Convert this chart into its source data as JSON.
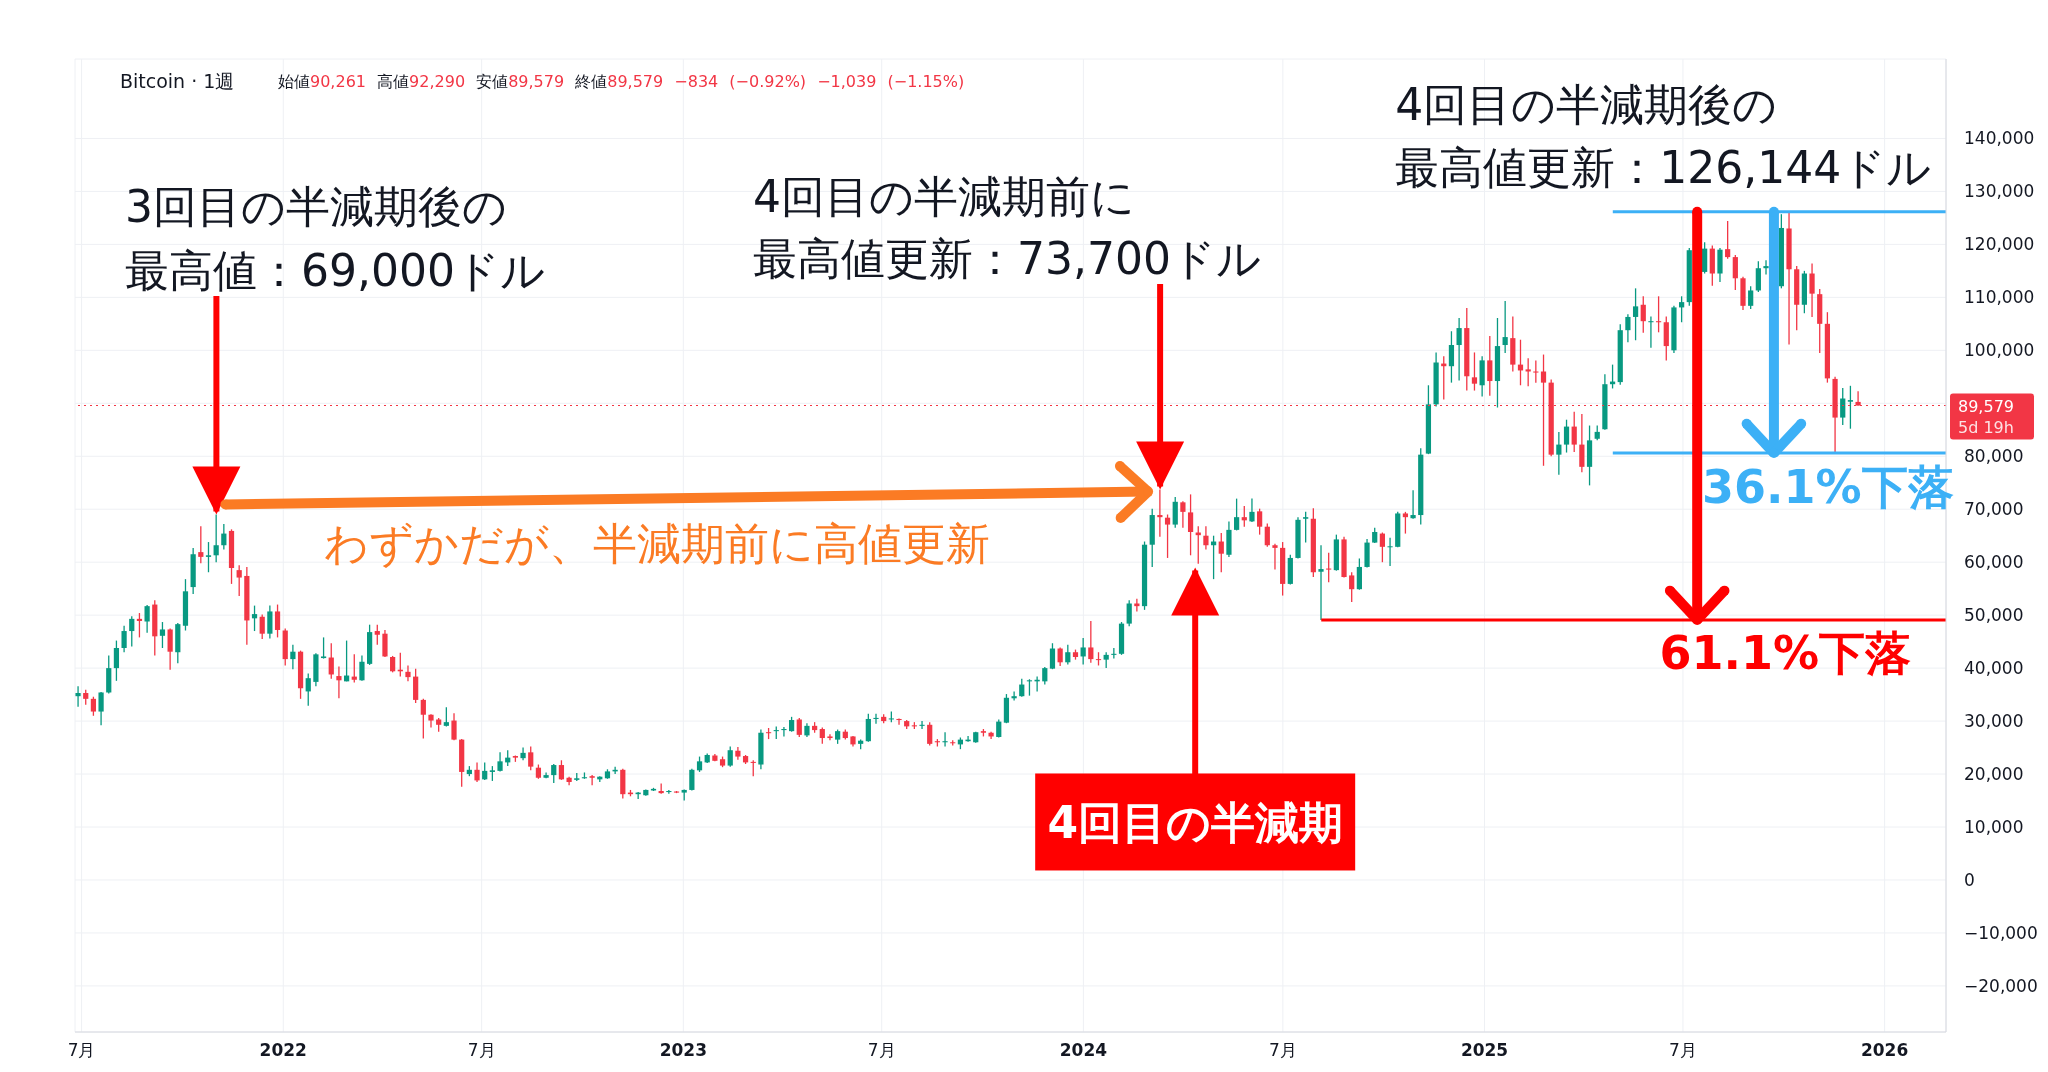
{
  "chart_data": {
    "type": "candlestick",
    "title": "Bitcoin · 1週",
    "subtitle": "始値90,261 高値92,290 安値89,579 終値89,579 −834 (−0.92%) −1,039 (−1.15%)",
    "x": [
      "2021-06-28",
      "2021-07-05",
      "2021-07-12",
      "2021-07-19",
      "2021-07-26",
      "2021-08-02",
      "2021-08-09",
      "2021-08-16",
      "2021-08-23",
      "2021-08-30",
      "2021-09-06",
      "2021-09-13",
      "2021-09-20",
      "2021-09-27",
      "2021-10-04",
      "2021-10-11",
      "2021-10-18",
      "2021-10-25",
      "2021-11-01",
      "2021-11-08",
      "2021-11-15",
      "2021-11-22",
      "2021-11-29",
      "2021-12-06",
      "2021-12-13",
      "2021-12-20",
      "2021-12-27",
      "2022-01-03",
      "2022-01-10",
      "2022-01-17",
      "2022-01-24",
      "2022-01-31",
      "2022-02-07",
      "2022-02-14",
      "2022-02-21",
      "2022-02-28",
      "2022-03-07",
      "2022-03-14",
      "2022-03-21",
      "2022-03-28",
      "2022-04-04",
      "2022-04-11",
      "2022-04-18",
      "2022-04-25",
      "2022-05-02",
      "2022-05-09",
      "2022-05-16",
      "2022-05-23",
      "2022-05-30",
      "2022-06-06",
      "2022-06-13",
      "2022-06-20",
      "2022-06-27",
      "2022-07-04",
      "2022-07-11",
      "2022-07-18",
      "2022-07-25",
      "2022-08-01",
      "2022-08-08",
      "2022-08-15",
      "2022-08-22",
      "2022-08-29",
      "2022-09-05",
      "2022-09-12",
      "2022-09-19",
      "2022-09-26",
      "2022-10-03",
      "2022-10-10",
      "2022-10-17",
      "2022-10-24",
      "2022-10-31",
      "2022-11-07",
      "2022-11-14",
      "2022-11-21",
      "2022-11-28",
      "2022-12-05",
      "2022-12-12",
      "2022-12-19",
      "2022-12-26",
      "2023-01-02",
      "2023-01-09",
      "2023-01-16",
      "2023-01-23",
      "2023-01-30",
      "2023-02-06",
      "2023-02-13",
      "2023-02-20",
      "2023-02-27",
      "2023-03-06",
      "2023-03-13",
      "2023-03-20",
      "2023-03-27",
      "2023-04-03",
      "2023-04-10",
      "2023-04-17",
      "2023-04-24",
      "2023-05-01",
      "2023-05-08",
      "2023-05-15",
      "2023-05-22",
      "2023-05-29",
      "2023-06-05",
      "2023-06-12",
      "2023-06-19",
      "2023-06-26",
      "2023-07-03",
      "2023-07-10",
      "2023-07-17",
      "2023-07-24",
      "2023-07-31",
      "2023-08-07",
      "2023-08-14",
      "2023-08-21",
      "2023-08-28",
      "2023-09-04",
      "2023-09-11",
      "2023-09-18",
      "2023-09-25",
      "2023-10-02",
      "2023-10-09",
      "2023-10-16",
      "2023-10-23",
      "2023-10-30",
      "2023-11-06",
      "2023-11-13",
      "2023-11-20",
      "2023-11-27",
      "2023-12-04",
      "2023-12-11",
      "2023-12-18",
      "2023-12-25",
      "2024-01-01",
      "2024-01-08",
      "2024-01-15",
      "2024-01-22",
      "2024-01-29",
      "2024-02-05",
      "2024-02-12",
      "2024-02-19",
      "2024-02-26",
      "2024-03-04",
      "2024-03-11",
      "2024-03-18",
      "2024-03-25",
      "2024-04-01",
      "2024-04-08",
      "2024-04-15",
      "2024-04-22",
      "2024-04-29",
      "2024-05-06",
      "2024-05-13",
      "2024-05-20",
      "2024-05-27",
      "2024-06-03",
      "2024-06-10",
      "2024-06-17",
      "2024-06-24",
      "2024-07-01",
      "2024-07-08",
      "2024-07-15",
      "2024-07-22",
      "2024-07-29",
      "2024-08-05",
      "2024-08-12",
      "2024-08-19",
      "2024-08-26",
      "2024-09-02",
      "2024-09-09",
      "2024-09-16",
      "2024-09-23",
      "2024-09-30",
      "2024-10-07",
      "2024-10-14",
      "2024-10-21",
      "2024-10-28",
      "2024-11-04",
      "2024-11-11",
      "2024-11-18",
      "2024-11-25",
      "2024-12-02",
      "2024-12-09",
      "2024-12-16",
      "2024-12-23",
      "2024-12-30",
      "2025-01-06",
      "2025-01-13",
      "2025-01-20",
      "2025-01-27",
      "2025-02-03",
      "2025-02-10",
      "2025-02-17",
      "2025-02-24",
      "2025-03-03",
      "2025-03-10",
      "2025-03-17",
      "2025-03-24",
      "2025-03-31",
      "2025-04-07",
      "2025-04-14",
      "2025-04-21",
      "2025-04-28",
      "2025-05-05",
      "2025-05-12",
      "2025-05-19",
      "2025-05-26",
      "2025-06-02",
      "2025-06-09",
      "2025-06-16",
      "2025-06-23",
      "2025-06-30",
      "2025-07-07",
      "2025-07-21",
      "2025-07-28",
      "2025-08-04",
      "2025-08-11",
      "2025-08-18",
      "2025-08-25",
      "2025-09-01",
      "2025-09-08",
      "2025-09-15",
      "2025-09-29",
      "2025-10-06",
      "2025-10-13",
      "2025-10-20",
      "2025-10-27",
      "2025-11-03",
      "2025-11-10",
      "2025-11-17",
      "2025-11-24",
      "2025-12-01",
      "2025-12-08"
    ],
    "ohlc": [
      [
        34700,
        36600,
        32700,
        35300
      ],
      [
        35300,
        35900,
        33100,
        34200
      ],
      [
        34200,
        34600,
        31000,
        31800
      ],
      [
        31800,
        35500,
        29200,
        35400
      ],
      [
        35400,
        42400,
        35200,
        40000
      ],
      [
        40000,
        45200,
        37600,
        43800
      ],
      [
        43800,
        48000,
        43000,
        47000
      ],
      [
        47000,
        49800,
        44100,
        49300
      ],
      [
        49300,
        50400,
        45800,
        48900
      ],
      [
        48800,
        51900,
        46700,
        51700
      ],
      [
        52000,
        52800,
        42400,
        46000
      ],
      [
        46100,
        48700,
        43800,
        47300
      ],
      [
        47300,
        47500,
        39700,
        43100
      ],
      [
        43000,
        48500,
        40900,
        48300
      ],
      [
        48000,
        56800,
        47100,
        54500
      ],
      [
        55300,
        62700,
        54000,
        61500
      ],
      [
        61900,
        66800,
        59800,
        61000
      ],
      [
        61000,
        63800,
        58100,
        61300
      ],
      [
        61300,
        69000,
        60000,
        63200
      ],
      [
        63200,
        67200,
        62400,
        65400
      ],
      [
        65900,
        66200,
        55900,
        58900
      ],
      [
        58500,
        59400,
        53600,
        57100
      ],
      [
        57400,
        59100,
        44400,
        49000
      ],
      [
        49400,
        51800,
        47000,
        50200
      ],
      [
        49700,
        50100,
        45500,
        46500
      ],
      [
        46500,
        51800,
        45600,
        50700
      ],
      [
        50700,
        52000,
        45800,
        47200
      ],
      [
        47100,
        47500,
        40500,
        41700
      ],
      [
        41700,
        44400,
        39800,
        43100
      ],
      [
        43100,
        43300,
        34200,
        36200
      ],
      [
        35600,
        39000,
        32900,
        38100
      ],
      [
        37400,
        42800,
        36600,
        42600
      ],
      [
        41900,
        45800,
        41800,
        42200
      ],
      [
        42000,
        44700,
        38000,
        38800
      ],
      [
        38500,
        40300,
        34300,
        37700
      ],
      [
        37500,
        45200,
        37500,
        38600
      ],
      [
        38400,
        42600,
        37300,
        37800
      ],
      [
        37700,
        42400,
        37600,
        41200
      ],
      [
        40800,
        48200,
        40600,
        46800
      ],
      [
        47000,
        48200,
        44400,
        46300
      ],
      [
        46500,
        47200,
        42100,
        42200
      ],
      [
        42100,
        42300,
        39200,
        39400
      ],
      [
        39700,
        42900,
        38400,
        39400
      ],
      [
        39300,
        40500,
        37500,
        38300
      ],
      [
        38400,
        39900,
        33400,
        34000
      ],
      [
        34000,
        34200,
        26700,
        31200
      ],
      [
        31200,
        31300,
        28800,
        30100
      ],
      [
        30300,
        30600,
        28000,
        29300
      ],
      [
        29100,
        32600,
        29000,
        29800
      ],
      [
        30100,
        31500,
        26400,
        26500
      ],
      [
        26500,
        26600,
        17600,
        20400
      ],
      [
        20000,
        21500,
        19600,
        20800
      ],
      [
        20800,
        22200,
        18500,
        18800
      ],
      [
        19000,
        22200,
        18900,
        20600
      ],
      [
        20400,
        21500,
        18700,
        20700
      ],
      [
        20600,
        24100,
        20500,
        22400
      ],
      [
        22200,
        24500,
        21500,
        23100
      ],
      [
        23400,
        23500,
        22300,
        23100
      ],
      [
        23000,
        25000,
        22600,
        24000
      ],
      [
        24100,
        25200,
        20700,
        21400
      ],
      [
        21200,
        21800,
        19100,
        19300
      ],
      [
        19300,
        20300,
        19200,
        19800
      ],
      [
        19800,
        21900,
        18300,
        21700
      ],
      [
        21700,
        22600,
        18900,
        19000
      ],
      [
        19300,
        19500,
        17900,
        18500
      ],
      [
        18900,
        20200,
        18700,
        19200
      ],
      [
        19200,
        20300,
        19100,
        19400
      ],
      [
        19600,
        19800,
        17900,
        19300
      ],
      [
        19000,
        19600,
        18500,
        19500
      ],
      [
        19200,
        20900,
        19100,
        20500
      ],
      [
        20500,
        21400,
        20000,
        20800
      ],
      [
        20800,
        21000,
        15400,
        16200
      ],
      [
        16500,
        17000,
        15800,
        16200
      ],
      [
        16200,
        16600,
        15300,
        16500
      ],
      [
        16000,
        17100,
        15900,
        17000
      ],
      [
        16900,
        17400,
        16800,
        17200
      ],
      [
        16800,
        18200,
        16300,
        16400
      ],
      [
        16600,
        17000,
        16300,
        16800
      ],
      [
        16700,
        16800,
        16400,
        16500
      ],
      [
        16500,
        17100,
        15000,
        17000
      ],
      [
        17000,
        21000,
        16900,
        20800
      ],
      [
        20700,
        23300,
        20400,
        22400
      ],
      [
        22200,
        23900,
        22100,
        23600
      ],
      [
        23500,
        23800,
        22400,
        22500
      ],
      [
        22800,
        23300,
        21300,
        21600
      ],
      [
        21600,
        25200,
        21400,
        24500
      ],
      [
        24400,
        25100,
        22700,
        23300
      ],
      [
        23400,
        23600,
        21900,
        22200
      ],
      [
        22300,
        22600,
        19600,
        22100
      ],
      [
        21800,
        28400,
        20900,
        27800
      ],
      [
        27900,
        28700,
        26600,
        27800
      ],
      [
        28100,
        29000,
        26600,
        28300
      ],
      [
        28300,
        28900,
        27100,
        28500
      ],
      [
        28100,
        30800,
        28000,
        30200
      ],
      [
        30300,
        30600,
        27000,
        27400
      ],
      [
        27300,
        29600,
        27000,
        29100
      ],
      [
        29100,
        29800,
        27800,
        28300
      ],
      [
        28500,
        28800,
        25700,
        26800
      ],
      [
        27100,
        27500,
        26400,
        26800
      ],
      [
        26500,
        28400,
        25700,
        28100
      ],
      [
        28000,
        28400,
        26500,
        26800
      ],
      [
        27100,
        27200,
        25200,
        25600
      ],
      [
        25700,
        26500,
        24700,
        26300
      ],
      [
        26200,
        31400,
        26100,
        30400
      ],
      [
        30400,
        31400,
        29500,
        30600
      ],
      [
        30800,
        31300,
        29600,
        30000
      ],
      [
        30400,
        31800,
        29800,
        30500
      ],
      [
        30400,
        30500,
        29300,
        30200
      ],
      [
        30000,
        30200,
        28500,
        29000
      ],
      [
        29200,
        29800,
        28500,
        29000
      ],
      [
        29100,
        30000,
        28500,
        29300
      ],
      [
        29300,
        29800,
        25400,
        25700
      ],
      [
        26200,
        26600,
        25200,
        26000
      ],
      [
        26000,
        27900,
        25200,
        26200
      ],
      [
        26000,
        26400,
        25400,
        25900
      ],
      [
        25600,
        26900,
        24700,
        26500
      ],
      [
        26200,
        27200,
        26100,
        26500
      ],
      [
        26000,
        28000,
        25900,
        27900
      ],
      [
        28100,
        28500,
        27100,
        27800
      ],
      [
        27800,
        28000,
        26600,
        27100
      ],
      [
        27000,
        30300,
        26900,
        29900
      ],
      [
        29700,
        35100,
        29600,
        34400
      ],
      [
        34300,
        35600,
        33900,
        34700
      ],
      [
        34700,
        38000,
        34600,
        36900
      ],
      [
        37500,
        37900,
        34800,
        37700
      ],
      [
        37500,
        38400,
        35600,
        37800
      ],
      [
        37500,
        40200,
        36900,
        40000
      ],
      [
        39900,
        44700,
        39800,
        43700
      ],
      [
        43700,
        43900,
        40400,
        41100
      ],
      [
        41100,
        44400,
        40700,
        43000
      ],
      [
        43000,
        43500,
        41600,
        42100
      ],
      [
        42200,
        45700,
        40700,
        43900
      ],
      [
        43900,
        48900,
        41000,
        41700
      ],
      [
        41700,
        43000,
        40500,
        41600
      ],
      [
        41600,
        43000,
        40000,
        42500
      ],
      [
        42500,
        43800,
        41800,
        42700
      ],
      [
        42700,
        48700,
        42500,
        48400
      ],
      [
        48400,
        52800,
        47900,
        52200
      ],
      [
        52200,
        53100,
        50700,
        51700
      ],
      [
        51700,
        63900,
        51000,
        63300
      ],
      [
        63300,
        70100,
        59100,
        68900
      ],
      [
        68900,
        73700,
        64800,
        68500
      ],
      [
        68400,
        69000,
        60800,
        67100
      ],
      [
        67100,
        72300,
        66500,
        71400
      ],
      [
        71300,
        71500,
        66500,
        69500
      ],
      [
        69400,
        72800,
        61300,
        65700
      ],
      [
        65600,
        66800,
        59700,
        65100
      ],
      [
        65000,
        66800,
        62400,
        63200
      ],
      [
        63200,
        65000,
        56800,
        63900
      ],
      [
        63900,
        65500,
        58100,
        61600
      ],
      [
        61400,
        67700,
        61000,
        66100
      ],
      [
        66100,
        72000,
        66000,
        68500
      ],
      [
        68500,
        70600,
        66700,
        67900
      ],
      [
        67700,
        72000,
        67600,
        69500
      ],
      [
        69600,
        70100,
        65200,
        66700
      ],
      [
        66700,
        67300,
        62900,
        63200
      ],
      [
        63200,
        63500,
        58600,
        62700
      ],
      [
        62700,
        63800,
        53700,
        55900
      ],
      [
        55900,
        61400,
        55800,
        60800
      ],
      [
        60800,
        68500,
        60700,
        68000
      ],
      [
        68200,
        69500,
        63700,
        68500
      ],
      [
        68200,
        70200,
        57200,
        58100
      ],
      [
        58200,
        63200,
        49100,
        58700
      ],
      [
        58800,
        61800,
        56200,
        58600
      ],
      [
        58500,
        65200,
        58400,
        64300
      ],
      [
        64300,
        64800,
        57100,
        57200
      ],
      [
        57500,
        58100,
        52500,
        54900
      ],
      [
        54900,
        60700,
        54800,
        59100
      ],
      [
        59100,
        64400,
        59000,
        63700
      ],
      [
        63700,
        66500,
        63600,
        65700
      ],
      [
        65400,
        65600,
        60000,
        62900
      ],
      [
        62900,
        64600,
        59300,
        63000
      ],
      [
        62900,
        69500,
        62800,
        69200
      ],
      [
        69200,
        69500,
        65400,
        68500
      ],
      [
        68300,
        73600,
        68200,
        68900
      ],
      [
        68900,
        81500,
        67100,
        80300
      ],
      [
        80500,
        93400,
        80400,
        89800
      ],
      [
        89800,
        99600,
        89400,
        97700
      ],
      [
        97500,
        98900,
        90700,
        97000
      ],
      [
        97000,
        103600,
        93900,
        101000
      ],
      [
        101000,
        106100,
        94300,
        104200
      ],
      [
        104200,
        108000,
        92400,
        95100
      ],
      [
        94900,
        99600,
        92400,
        93700
      ],
      [
        93400,
        98900,
        91300,
        98100
      ],
      [
        98100,
        102700,
        91400,
        94200
      ],
      [
        94200,
        106100,
        89200,
        100800
      ],
      [
        101000,
        109300,
        99500,
        102500
      ],
      [
        102300,
        106400,
        96000,
        97300
      ],
      [
        97300,
        102000,
        93400,
        96200
      ],
      [
        96400,
        98500,
        93200,
        96000
      ],
      [
        96000,
        98100,
        93900,
        95800
      ],
      [
        96000,
        99200,
        78200,
        93900
      ],
      [
        93900,
        94500,
        80000,
        80300
      ],
      [
        80300,
        84600,
        76500,
        82200
      ],
      [
        82200,
        86900,
        80700,
        85600
      ],
      [
        85600,
        88400,
        80800,
        82200
      ],
      [
        82200,
        88000,
        77000,
        78000
      ],
      [
        78000,
        85800,
        74500,
        83000
      ],
      [
        83300,
        85800,
        83000,
        84600
      ],
      [
        85100,
        95500,
        85000,
        93600
      ],
      [
        93600,
        97300,
        92800,
        94100
      ],
      [
        94000,
        104900,
        93500,
        103800
      ],
      [
        103800,
        106800,
        101500,
        106300
      ],
      [
        106300,
        111700,
        101900,
        108300
      ],
      [
        108600,
        110200,
        103300,
        105500
      ],
      [
        105300,
        106400,
        100500,
        105500
      ],
      [
        105500,
        110200,
        103400,
        105300
      ],
      [
        105300,
        106400,
        98100,
        100800
      ],
      [
        100000,
        108400,
        99500,
        108100
      ],
      [
        108100,
        110200,
        105300,
        109100
      ],
      [
        109100,
        119300,
        108400,
        118900
      ],
      [
        114800,
        120400,
        114500,
        119200
      ],
      [
        119200,
        119800,
        112200,
        114500
      ],
      [
        114500,
        119300,
        112900,
        119000
      ],
      [
        119100,
        124400,
        117300,
        117600
      ],
      [
        117600,
        118000,
        111400,
        113600
      ],
      [
        113600,
        113900,
        107600,
        108400
      ],
      [
        108400,
        112100,
        107800,
        111300
      ],
      [
        111300,
        116800,
        111000,
        115500
      ],
      [
        115500,
        117000,
        114300,
        115900
      ],
      [
        112100,
        125700,
        111700,
        123100
      ],
      [
        123000,
        126144,
        101100,
        115300
      ],
      [
        115300,
        115900,
        103800,
        108600
      ],
      [
        108600,
        115000,
        107000,
        114500
      ],
      [
        114500,
        116400,
        106300,
        110700
      ],
      [
        110600,
        111600,
        99500,
        105000
      ],
      [
        105000,
        107200,
        93900,
        94700
      ],
      [
        94600,
        95000,
        80600,
        87300
      ],
      [
        87300,
        92900,
        85900,
        90900
      ],
      [
        90300,
        93300,
        85200,
        90600
      ],
      [
        90261,
        92290,
        89579,
        89579
      ]
    ],
    "colors": [
      "#089981",
      "#f23645",
      "#f23645",
      "#089981",
      "#089981",
      "#089981",
      "#089981",
      "#089981",
      "#f23645",
      "#089981",
      "#f23645",
      "#089981",
      "#f23645",
      "#089981",
      "#089981",
      "#089981",
      "#f23645",
      "#089981",
      "#089981",
      "#089981",
      "#f23645",
      "#f23645",
      "#f23645",
      "#089981",
      "#f23645",
      "#089981",
      "#f23645",
      "#f23645",
      "#089981",
      "#f23645",
      "#089981",
      "#089981",
      "#089981",
      "#f23645",
      "#f23645",
      "#089981",
      "#f23645",
      "#089981",
      "#089981",
      "#f23645",
      "#f23645",
      "#f23645",
      "#f23645",
      "#f23645",
      "#f23645",
      "#f23645",
      "#f23645",
      "#f23645",
      "#089981",
      "#f23645",
      "#f23645",
      "#089981",
      "#f23645",
      "#089981",
      "#089981",
      "#089981",
      "#089981",
      "#f23645",
      "#089981",
      "#f23645",
      "#f23645",
      "#089981",
      "#089981",
      "#f23645",
      "#f23645",
      "#089981",
      "#089981",
      "#f23645",
      "#089981",
      "#089981",
      "#089981",
      "#f23645",
      "#f23645",
      "#089981",
      "#089981",
      "#089981",
      "#f23645",
      "#089981",
      "#f23645",
      "#089981",
      "#089981",
      "#089981",
      "#089981",
      "#f23645",
      "#f23645",
      "#089981",
      "#f23645",
      "#f23645",
      "#f23645",
      "#089981",
      "#f23645",
      "#089981",
      "#089981",
      "#089981",
      "#f23645",
      "#089981",
      "#f23645",
      "#f23645",
      "#f23645",
      "#089981",
      "#f23645",
      "#f23645",
      "#089981",
      "#089981",
      "#089981",
      "#f23645",
      "#089981",
      "#f23645",
      "#f23645",
      "#f23645",
      "#089981",
      "#f23645",
      "#f23645",
      "#089981",
      "#f23645",
      "#089981",
      "#089981",
      "#089981",
      "#f23645",
      "#f23645",
      "#089981",
      "#089981",
      "#089981",
      "#089981",
      "#089981",
      "#089981",
      "#089981",
      "#089981",
      "#f23645",
      "#089981",
      "#f23645",
      "#089981",
      "#f23645",
      "#f23645",
      "#089981",
      "#089981",
      "#089981",
      "#089981",
      "#f23645",
      "#089981",
      "#089981",
      "#f23645",
      "#f23645",
      "#089981",
      "#f23645",
      "#f23645",
      "#f23645",
      "#f23645",
      "#089981",
      "#f23645",
      "#089981",
      "#089981",
      "#f23645",
      "#089981",
      "#f23645",
      "#f23645",
      "#f23645",
      "#f23645",
      "#089981",
      "#089981",
      "#089981",
      "#f23645",
      "#089981",
      "#f23645",
      "#089981",
      "#f23645",
      "#f23645",
      "#089981",
      "#089981",
      "#089981",
      "#f23645",
      "#089981",
      "#089981",
      "#f23645",
      "#089981",
      "#089981",
      "#089981",
      "#089981",
      "#f23645",
      "#089981",
      "#089981",
      "#f23645",
      "#f23645",
      "#089981",
      "#f23645",
      "#089981",
      "#089981",
      "#f23645",
      "#f23645",
      "#f23645",
      "#f23645",
      "#f23645",
      "#f23645",
      "#089981",
      "#089981",
      "#f23645",
      "#f23645",
      "#089981",
      "#089981",
      "#089981",
      "#089981",
      "#089981",
      "#089981",
      "#089981",
      "#f23645",
      "#089981",
      "#f23645",
      "#f23645",
      "#089981",
      "#089981",
      "#089981",
      "#089981",
      "#f23645",
      "#089981",
      "#f23645",
      "#f23645",
      "#f23645",
      "#089981",
      "#089981",
      "#089981",
      "#089981",
      "#f23645",
      "#f23645",
      "#089981",
      "#f23645",
      "#f23645",
      "#f23645",
      "#f23645",
      "#089981",
      "#089981",
      "#f23645"
    ],
    "xlim": [
      "2021-06-25",
      "2026-02-26"
    ],
    "xticks": [
      {
        "value": "2021-07-01",
        "label": "7月"
      },
      {
        "value": "2022-01-01",
        "label": "2022"
      },
      {
        "value": "2022-07-01",
        "label": "7月"
      },
      {
        "value": "2023-01-01",
        "label": "2023"
      },
      {
        "value": "2023-07-01",
        "label": "7月"
      },
      {
        "value": "2024-01-01",
        "label": "2024"
      },
      {
        "value": "2024-07-01",
        "label": "7月"
      },
      {
        "value": "2025-01-01",
        "label": "2025"
      },
      {
        "value": "2025-07-01",
        "label": "7月"
      },
      {
        "value": "2026-01-01",
        "label": "2026"
      }
    ],
    "ylim": [
      -28700,
      155000
    ],
    "yticks": [
      {
        "value": -20000,
        "label": "−20,000"
      },
      {
        "value": -10000,
        "label": "−10,000"
      },
      0,
      {
        "value": 10000,
        "label": "10,000"
      },
      {
        "value": 20000,
        "label": "20,000"
      },
      {
        "value": 30000,
        "label": "30,000"
      },
      {
        "value": 40000,
        "label": "40,000"
      },
      {
        "value": 50000,
        "label": "50,000"
      },
      {
        "value": 60000,
        "label": "60,000"
      },
      {
        "value": 70000,
        "label": "70,000"
      },
      {
        "value": 80000,
        "label": "80,000"
      },
      {
        "value": 90000,
        "label": null
      },
      {
        "value": 100000,
        "label": "100,000"
      },
      {
        "value": 110000,
        "label": "110,000"
      },
      {
        "value": 120000,
        "label": "120,000"
      },
      {
        "value": 130000,
        "label": "130,000"
      },
      {
        "value": 140000,
        "label": "140,000"
      }
    ],
    "grid": true,
    "series": [
      {
        "type": "line",
        "color": "#3cb0f6",
        "x": [
          "2025-04-28",
          "2026-02-26"
        ],
        "values": [
          126144,
          126144
        ]
      },
      {
        "type": "line",
        "color": "#3cb0f6",
        "x": [
          "2025-04-28",
          "2026-02-26"
        ],
        "values": [
          80600,
          80600
        ]
      },
      {
        "type": "line",
        "color": "#ff0000",
        "x": [
          "2024-08-05",
          "2026-02-26"
        ],
        "values": [
          49100,
          49100
        ]
      }
    ],
    "ref_lines": [
      {
        "axis": "y",
        "value": 89579,
        "label": "89,579\n5d 19h",
        "color": "#f23645",
        "line_style": "dotted"
      }
    ],
    "annotations": [
      {
        "text": "3回目の半減期後の最高値：69,000ドル",
        "x": "2021-11-01",
        "y": 69000
      },
      {
        "text": "4回目の半減期前に最高値更新：73,700ドル",
        "x": "2024-03-11",
        "y": 73700
      },
      {
        "text": "4回目の半減期後の最高値更新：126,144ドル",
        "x": "2025-10-06",
        "y": 126144
      },
      "わずかだが、半減期前に高値更新",
      {
        "text": "4回目の半減期",
        "x": "2024-04-12",
        "y": 59000
      },
      {
        "text": "36.1%下落",
        "x": "2025-09-22",
        "y": 80600
      },
      {
        "text": "61.1%下落",
        "x": "2025-07-14",
        "y": 49100
      }
    ]
  }
}
